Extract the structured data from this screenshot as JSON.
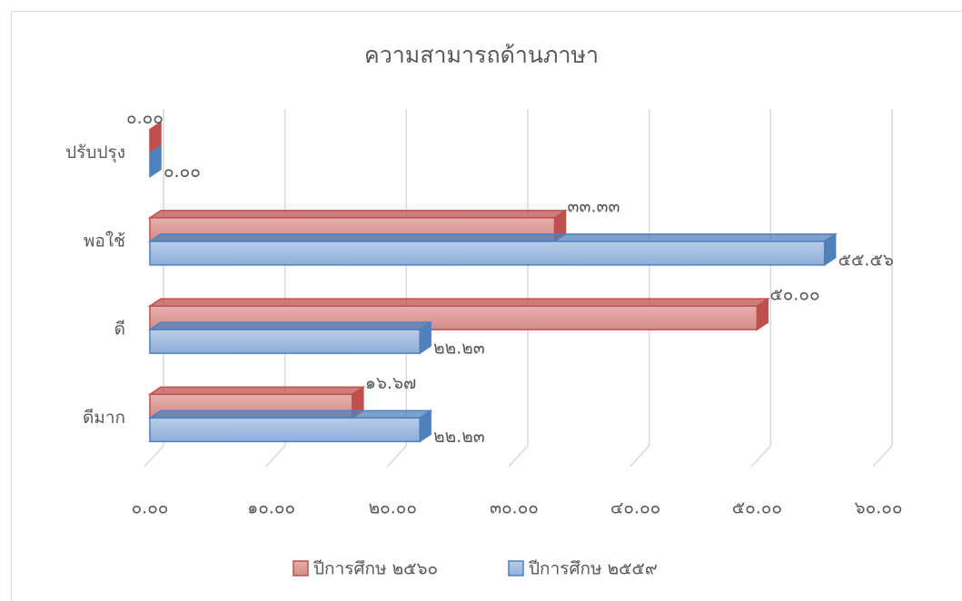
{
  "chart_data": {
    "type": "bar3d_horizontal",
    "title": "ความสามารถด้านภาษา",
    "categories": [
      "ดีมาก",
      "ดี",
      "พอใช้",
      "ปรับปรุง"
    ],
    "series": [
      {
        "name": "ปีการศึกษ ๒๕๖๐",
        "color": "#c0504d",
        "values": [
          16.67,
          50.0,
          33.33,
          0.0
        ],
        "value_labels": [
          "๑๖.๖๗",
          "๕๐.๐๐",
          "๓๓.๓๓",
          "๐.๐๐"
        ]
      },
      {
        "name": "ปีการศึกษ ๒๕๕๙",
        "color": "#4f81bd",
        "values": [
          22.23,
          22.23,
          55.56,
          0.0
        ],
        "value_labels": [
          "๒๒.๒๓",
          "๒๒.๒๓",
          "๕๕.๕๖",
          "๐.๐๐"
        ]
      }
    ],
    "xlim": [
      0,
      60
    ],
    "xticks": [
      {
        "value": 0,
        "label": "๐.๐๐"
      },
      {
        "value": 10,
        "label": "๑๐.๐๐"
      },
      {
        "value": 20,
        "label": "๒๐.๐๐"
      },
      {
        "value": 30,
        "label": "๓๐.๐๐"
      },
      {
        "value": 40,
        "label": "๔๐.๐๐"
      },
      {
        "value": 50,
        "label": "๕๐.๐๐"
      },
      {
        "value": 60,
        "label": "๖๐.๐๐"
      }
    ],
    "grid": true,
    "legend": "bottom"
  }
}
